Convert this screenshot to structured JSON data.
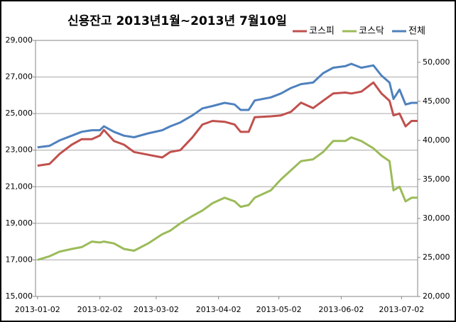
{
  "chart_data": {
    "type": "line",
    "title": "신용잔고 2013년1월~2013년 7월10일",
    "x": [
      "2013-01-02",
      "2013-01-08",
      "2013-01-13",
      "2013-01-19",
      "2013-01-24",
      "2013-01-29",
      "2013-02-02",
      "2013-02-04",
      "2013-02-09",
      "2013-02-14",
      "2013-02-19",
      "2013-02-26",
      "2013-03-05",
      "2013-03-09",
      "2013-03-14",
      "2013-03-20",
      "2013-03-25",
      "2013-03-30",
      "2013-04-05",
      "2013-04-10",
      "2013-04-13",
      "2013-04-17",
      "2013-04-20",
      "2013-04-28",
      "2013-05-03",
      "2013-05-08",
      "2013-05-13",
      "2013-05-19",
      "2013-05-24",
      "2013-05-29",
      "2013-06-04",
      "2013-06-07",
      "2013-06-12",
      "2013-06-18",
      "2013-06-22",
      "2013-06-26",
      "2013-06-28",
      "2013-07-01",
      "2013-07-04",
      "2013-07-07",
      "2013-07-10"
    ],
    "xlim": [
      "2013-01-01",
      "2013-07-10"
    ],
    "xticks": [
      "2013-01-02",
      "2013-02-02",
      "2013-03-02",
      "2013-04-02",
      "2013-05-02",
      "2013-06-02",
      "2013-07-02"
    ],
    "ylim": [
      15000,
      29000
    ],
    "yticks": [
      {
        "value": 15000,
        "label": "15,000"
      },
      {
        "value": 17000,
        "label": "17,000"
      },
      {
        "value": 19000,
        "label": "19,000"
      },
      {
        "value": 21000,
        "label": "21,000"
      },
      {
        "value": 23000,
        "label": "23,000"
      },
      {
        "value": 25000,
        "label": "25,000"
      },
      {
        "value": 27000,
        "label": "27,000"
      },
      {
        "value": 29000,
        "label": "29,000"
      }
    ],
    "y2lim": [
      20000,
      52800
    ],
    "y2ticks": [
      {
        "value": 20000,
        "label": "20,000"
      },
      {
        "value": 25000,
        "label": "25,000"
      },
      {
        "value": 30000,
        "label": "30,000"
      },
      {
        "value": 35000,
        "label": "35,000"
      },
      {
        "value": 40000,
        "label": "40,000"
      },
      {
        "value": 45000,
        "label": "45,000"
      },
      {
        "value": 50000,
        "label": "50,000"
      }
    ],
    "grid": true,
    "legend": "top-right",
    "series": [
      {
        "name": "코스피",
        "color": "#c0504d",
        "values": [
          22150,
          22250,
          22800,
          23300,
          23600,
          23600,
          23800,
          24100,
          23500,
          23300,
          22900,
          22750,
          22600,
          22900,
          23000,
          23700,
          24400,
          24600,
          24550,
          24400,
          24000,
          24000,
          24800,
          24850,
          24900,
          25100,
          25600,
          25300,
          25700,
          26100,
          26150,
          26100,
          26200,
          26700,
          26100,
          25700,
          24900,
          25000,
          24300,
          24600,
          24600
        ]
      },
      {
        "name": "코스닥",
        "color": "#9bbb59",
        "values": [
          17000,
          17200,
          17450,
          17600,
          17700,
          18000,
          17950,
          18000,
          17900,
          17600,
          17500,
          17900,
          18400,
          18600,
          19000,
          19400,
          19700,
          20100,
          20400,
          20200,
          19900,
          20000,
          20400,
          20800,
          21400,
          21900,
          22400,
          22500,
          22900,
          23500,
          23500,
          23700,
          23500,
          23100,
          22700,
          22400,
          20800,
          21000,
          20200,
          20400,
          20400
        ]
      },
      {
        "name": "전체",
        "color": "#4f81bd",
        "axis": "y2",
        "values": [
          39100,
          39300,
          40000,
          40600,
          41100,
          41300,
          41300,
          41800,
          41100,
          40600,
          40400,
          40900,
          41300,
          41800,
          42300,
          43200,
          44100,
          44400,
          44800,
          44600,
          43900,
          43900,
          45100,
          45500,
          46000,
          46700,
          47200,
          47400,
          48600,
          49300,
          49500,
          49800,
          49300,
          49600,
          48300,
          47400,
          45300,
          46500,
          44600,
          44800,
          44800
        ]
      }
    ]
  }
}
